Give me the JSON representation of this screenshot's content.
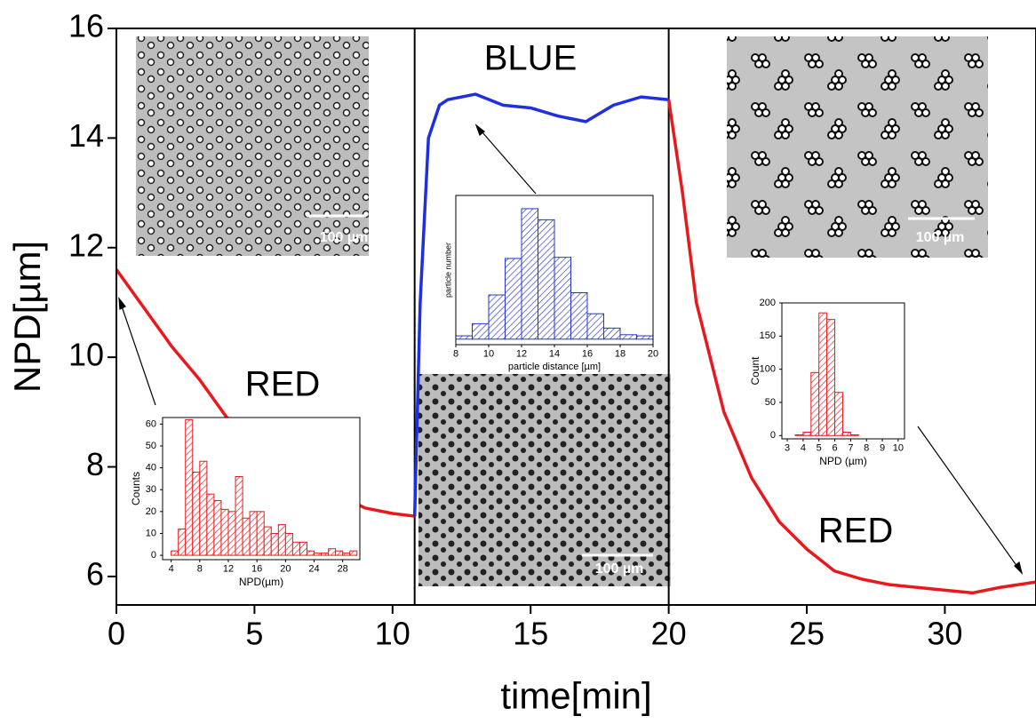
{
  "chart_data": [
    {
      "type": "line",
      "xlabel": "time[min]",
      "ylabel": "NPD[µm]",
      "xlim": [
        0,
        33.3
      ],
      "ylim": [
        5.48,
        16
      ],
      "xticks": [
        0,
        5,
        10,
        15,
        20,
        25,
        30
      ],
      "yticks": [
        6,
        8,
        10,
        12,
        14,
        16
      ],
      "vlines": [
        10.8,
        20
      ],
      "annotations": [
        "RED",
        "BLUE",
        "RED"
      ],
      "series": [
        {
          "color": "#e8191c",
          "x": [
            0,
            1,
            2,
            3,
            4,
            5,
            6,
            7,
            8,
            9,
            10,
            10.8
          ],
          "values": [
            11.6,
            10.9,
            10.2,
            9.6,
            8.9,
            8.6,
            8.2,
            7.8,
            7.5,
            7.25,
            7.15,
            7.1
          ]
        },
        {
          "color": "#1f2fe0",
          "x": [
            10.8,
            11.0,
            11.3,
            11.7,
            12,
            13,
            14,
            15,
            16,
            17,
            18,
            19,
            20
          ],
          "values": [
            7.1,
            11,
            14.0,
            14.6,
            14.7,
            14.8,
            14.6,
            14.55,
            14.4,
            14.3,
            14.6,
            14.75,
            14.7
          ]
        },
        {
          "color": "#e8191c",
          "x": [
            20,
            20.5,
            21,
            22,
            23,
            24,
            25,
            26,
            27,
            28,
            30,
            31,
            32,
            33.3
          ],
          "values": [
            14.7,
            13,
            11,
            9,
            7.8,
            7.0,
            6.5,
            6.1,
            5.95,
            5.85,
            5.75,
            5.7,
            5.8,
            5.9
          ]
        }
      ]
    },
    {
      "type": "histogram",
      "xlabel": "NPD(µm)",
      "ylabel": "Counts",
      "color": "#e8191c",
      "bins": [
        4,
        5,
        6,
        7,
        8,
        9,
        10,
        11,
        12,
        13,
        14,
        15,
        16,
        17,
        18,
        19,
        20,
        21,
        22,
        23,
        24,
        25,
        26,
        27,
        28,
        29,
        30
      ],
      "values": [
        2,
        12,
        62,
        38,
        43,
        28,
        25,
        21,
        20,
        36,
        17,
        20,
        20,
        13,
        10,
        14,
        10,
        6,
        6,
        2,
        1,
        1,
        3,
        2,
        1,
        2
      ],
      "xlim": [
        2.8,
        30.4
      ],
      "ylim": [
        -2,
        63
      ],
      "xticks": [
        4,
        8,
        12,
        16,
        20,
        24,
        28
      ],
      "yticks": [
        0,
        10,
        20,
        30,
        40,
        50,
        60
      ]
    },
    {
      "type": "histogram",
      "xlabel": "particle distance [µm]",
      "ylabel": "particle number",
      "color": "#2634c8",
      "bins": [
        8,
        9,
        10,
        11,
        12,
        13,
        14,
        15,
        16,
        17,
        18,
        19,
        20
      ],
      "values": [
        3,
        14,
        40,
        73,
        118,
        108,
        74,
        42,
        23,
        10,
        4,
        3
      ],
      "xlim": [
        8,
        20
      ],
      "ylim": [
        -5,
        130
      ],
      "xticks": [
        8,
        10,
        12,
        14,
        16,
        18,
        20
      ]
    },
    {
      "type": "histogram",
      "xlabel": "NPD (µm)",
      "ylabel": "Count",
      "color": "#e8191c",
      "bins": [
        3.5,
        4,
        4.5,
        5,
        5.5,
        6,
        6.5,
        7,
        7.5
      ],
      "values": [
        1,
        5,
        95,
        185,
        175,
        65,
        5,
        1
      ],
      "xlim": [
        2.66,
        10.4
      ],
      "ylim": [
        -5,
        200
      ],
      "xticks": [
        3,
        4,
        5,
        6,
        7,
        8,
        9,
        10
      ],
      "yticks": [
        0,
        50,
        100,
        150,
        200
      ]
    }
  ],
  "images": [
    {
      "scale_label": "100 µm"
    },
    {
      "scale_label": "100 µm"
    },
    {
      "scale_label": "100 µm"
    }
  ]
}
